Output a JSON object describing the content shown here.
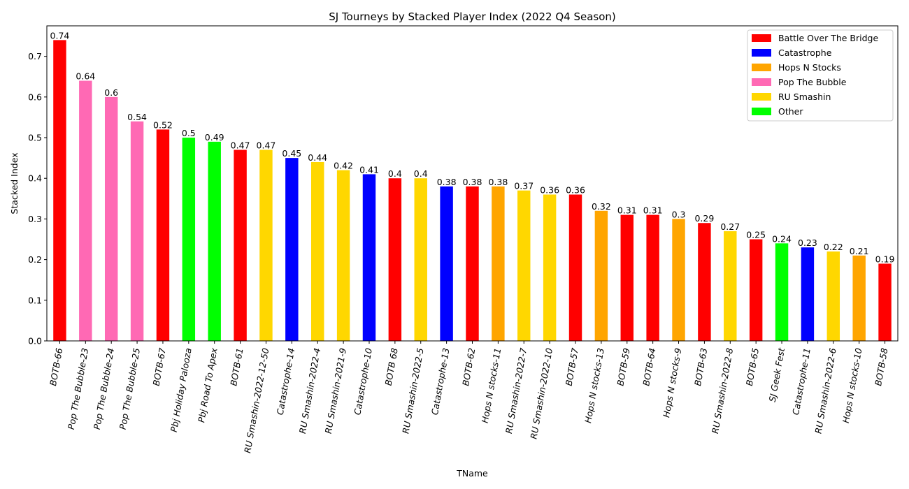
{
  "chart_data": {
    "type": "bar",
    "title": "SJ Tourneys by Stacked Player Index (2022 Q4 Season)",
    "xlabel": "TName",
    "ylabel": "Stacked Index",
    "ylim": [
      0,
      0.775
    ],
    "yticks": [
      0.0,
      0.1,
      0.2,
      0.3,
      0.4,
      0.5,
      0.6,
      0.7
    ],
    "ytick_labels": [
      "0.0",
      "0.1",
      "0.2",
      "0.3",
      "0.4",
      "0.5",
      "0.6",
      "0.7"
    ],
    "grid": false,
    "legend_position": "top-right",
    "legend": [
      {
        "name": "Battle Over The Bridge",
        "color": "#ff0000"
      },
      {
        "name": "Catastrophe",
        "color": "#0000ff"
      },
      {
        "name": "Hops N Stocks",
        "color": "#ffa500"
      },
      {
        "name": "Pop The Bubble",
        "color": "#ff69b4"
      },
      {
        "name": "RU Smashin",
        "color": "#ffd700"
      },
      {
        "name": "Other",
        "color": "#00ff00"
      }
    ],
    "categories": [
      "BOTB-66",
      "Pop The Bubble-23",
      "Pop The Bubble-24",
      "Pop The Bubble-25",
      "BOTB-67",
      "Pbj Holiday Palooza",
      "Pbj Road To Apex",
      "BOTB-61",
      "RU Smashin-2022-12-50",
      "Catastrophe-14",
      "RU Smashin-2022-4",
      "RU Smashin-2021-9",
      "Catastrophe-10",
      "BOTB 68",
      "RU Smashin-2022-5",
      "Catastrophe-13",
      "BOTB-62",
      "Hops N stocks-11",
      "RU Smashin-2022-7",
      "RU Smashin-2022-10",
      "BOTB-57",
      "Hops N stocks-13",
      "BOTB-59",
      "BOTB-64",
      "Hops N stocks-9",
      "BOTB-63",
      "RU Smashin-2022-8",
      "BOTB-65",
      "SJ Geek Fest",
      "Catastrophe-11",
      "RU Smashin-2022-6",
      "Hops N stocks-10",
      "BOTB-58"
    ],
    "values": [
      0.74,
      0.64,
      0.6,
      0.54,
      0.52,
      0.5,
      0.49,
      0.47,
      0.47,
      0.45,
      0.44,
      0.42,
      0.41,
      0.4,
      0.4,
      0.38,
      0.38,
      0.38,
      0.37,
      0.36,
      0.36,
      0.32,
      0.31,
      0.31,
      0.3,
      0.29,
      0.27,
      0.25,
      0.24,
      0.23,
      0.22,
      0.21,
      0.19
    ],
    "value_labels": [
      "0.74",
      "0.64",
      "0.6",
      "0.54",
      "0.52",
      "0.5",
      "0.49",
      "0.47",
      "0.47",
      "0.45",
      "0.44",
      "0.42",
      "0.41",
      "0.4",
      "0.4",
      "0.38",
      "0.38",
      "0.38",
      "0.37",
      "0.36",
      "0.36",
      "0.32",
      "0.31",
      "0.31",
      "0.3",
      "0.29",
      "0.27",
      "0.25",
      "0.24",
      "0.23",
      "0.22",
      "0.21",
      "0.19"
    ],
    "bar_series": [
      "Battle Over The Bridge",
      "Pop The Bubble",
      "Pop The Bubble",
      "Pop The Bubble",
      "Battle Over The Bridge",
      "Other",
      "Other",
      "Battle Over The Bridge",
      "RU Smashin",
      "Catastrophe",
      "RU Smashin",
      "RU Smashin",
      "Catastrophe",
      "Battle Over The Bridge",
      "RU Smashin",
      "Catastrophe",
      "Battle Over The Bridge",
      "Hops N Stocks",
      "RU Smashin",
      "RU Smashin",
      "Battle Over The Bridge",
      "Hops N Stocks",
      "Battle Over The Bridge",
      "Battle Over The Bridge",
      "Hops N Stocks",
      "Battle Over The Bridge",
      "RU Smashin",
      "Battle Over The Bridge",
      "Other",
      "Catastrophe",
      "RU Smashin",
      "Hops N Stocks",
      "Battle Over The Bridge"
    ]
  }
}
